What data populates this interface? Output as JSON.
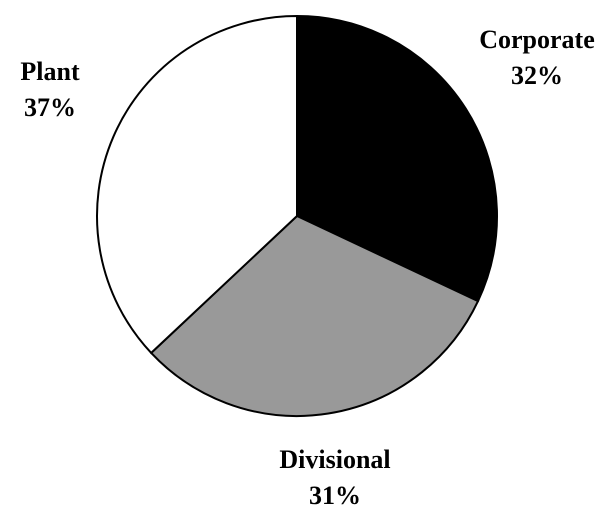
{
  "chart_data": {
    "type": "pie",
    "categories": [
      "Corporate",
      "Divisional",
      "Plant"
    ],
    "values": [
      32,
      31,
      37
    ],
    "value_labels": [
      "32%",
      "31%",
      "37%"
    ],
    "colors": [
      "#000000",
      "#999999",
      "#ffffff"
    ]
  }
}
